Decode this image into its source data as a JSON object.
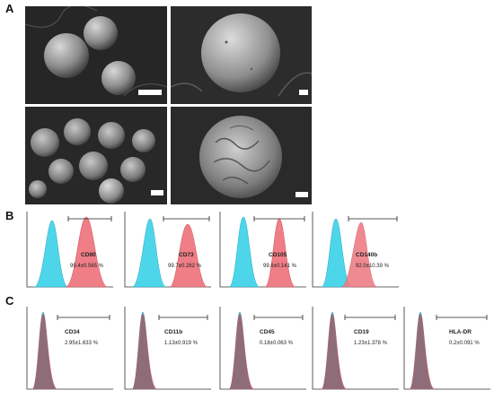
{
  "figure": {
    "panels": {
      "a": "A",
      "b": "B",
      "c": "C"
    },
    "colors": {
      "isotype": "#4dd6ea",
      "stain": "#ef7e86",
      "overlap": "#9b5a66",
      "sem_bg": "#2a2a2a"
    },
    "row_b": [
      {
        "marker": "CD90",
        "value": "99.4±0.565 %"
      },
      {
        "marker": "CD73",
        "value": "99.7±0.282 %"
      },
      {
        "marker": "CD105",
        "value": "99.6±0.141 %"
      },
      {
        "marker": "CD140b",
        "value": "92.0±10.39 %"
      }
    ],
    "row_c": [
      {
        "marker": "CD34",
        "value": "2.95±1.633 %"
      },
      {
        "marker": "CD11b",
        "value": "1.13±0.919 %"
      },
      {
        "marker": "CD45",
        "value": "0.18±0.063 %"
      },
      {
        "marker": "CD19",
        "value": "1.23±1.378 %"
      },
      {
        "marker": "HLA-DR",
        "value": "0.2±0.091 %"
      }
    ]
  }
}
